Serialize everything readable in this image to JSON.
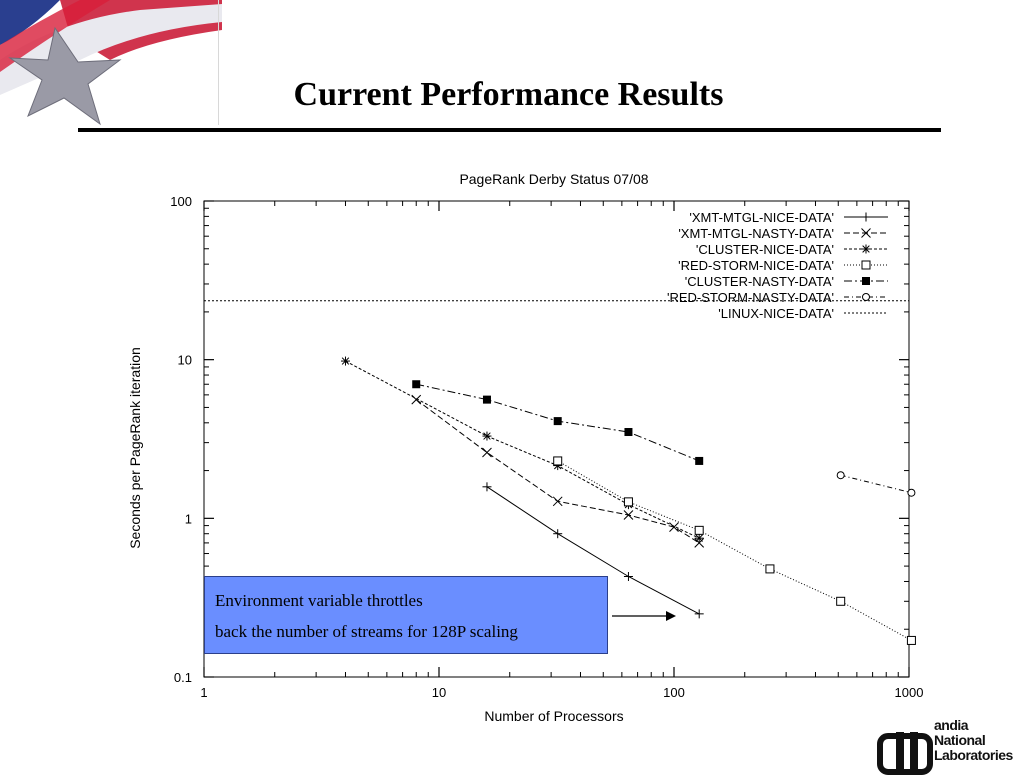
{
  "slide": {
    "title": "Current Performance Results"
  },
  "callout": {
    "line1": "Environment variable throttles",
    "line2": "back the number of streams for 128P scaling"
  },
  "logo": {
    "line1": "andia",
    "line2": "National",
    "line3": "Laboratories",
    "icon": "thunderbird-logo-icon"
  },
  "colors": {
    "background": "#ffffff",
    "callout_fill": "#6a8eff",
    "ink": "#000000"
  },
  "chart_data": {
    "type": "line",
    "title": "PageRank Derby Status 07/08",
    "xlabel": "Number of Processors",
    "ylabel": "Seconds per PageRank iteration",
    "xscale": "log",
    "yscale": "log",
    "xlim": [
      1,
      1000
    ],
    "ylim": [
      0.1,
      100
    ],
    "xticks": [
      {
        "v": 1,
        "label": "1"
      },
      {
        "v": 10,
        "label": "10"
      },
      {
        "v": 100,
        "label": "100"
      },
      {
        "v": 1000,
        "label": "1000"
      }
    ],
    "yticks": [
      {
        "v": 0.1,
        "label": "0.1"
      },
      {
        "v": 1,
        "label": "1"
      },
      {
        "v": 10,
        "label": "10"
      },
      {
        "v": 100,
        "label": "100"
      }
    ],
    "legend_position": "top-right",
    "series": [
      {
        "name": "'XMT-MTGL-NICE-DATA'",
        "marker": "plus",
        "dash": "",
        "x": [
          16,
          32,
          64,
          128
        ],
        "y": [
          1.58,
          0.8,
          0.43,
          0.25
        ]
      },
      {
        "name": "'XMT-MTGL-NASTY-DATA'",
        "marker": "cross",
        "dash": "6,3",
        "x": [
          8,
          16,
          32,
          64,
          100,
          128
        ],
        "y": [
          5.6,
          2.6,
          1.28,
          1.05,
          0.88,
          0.7
        ]
      },
      {
        "name": "'CLUSTER-NICE-DATA'",
        "marker": "star",
        "dash": "3,2",
        "x": [
          4,
          16,
          32,
          64,
          128
        ],
        "y": [
          9.8,
          3.3,
          2.15,
          1.22,
          0.75
        ]
      },
      {
        "name": "'RED-STORM-NICE-DATA'",
        "marker": "open-square",
        "dash": "1,2",
        "x": [
          32,
          64,
          128,
          256,
          512,
          1024
        ],
        "y": [
          2.3,
          1.27,
          0.84,
          0.48,
          0.3,
          0.17
        ]
      },
      {
        "name": "'CLUSTER-NASTY-DATA'",
        "marker": "filled-square",
        "dash": "8,3,2,3",
        "x": [
          8,
          16,
          32,
          64,
          128
        ],
        "y": [
          7.0,
          5.6,
          4.1,
          3.5,
          2.3
        ]
      },
      {
        "name": "'RED-STORM-NASTY-DATA'",
        "marker": "open-circle",
        "dash": "5,3,1,3",
        "x": [
          512,
          1024
        ],
        "y": [
          1.87,
          1.45
        ]
      },
      {
        "name": "'LINUX-NICE-DATA'",
        "marker": "none",
        "dash": "2,2",
        "x": [
          1,
          1000
        ],
        "y": [
          23.5,
          23.5
        ]
      }
    ]
  }
}
